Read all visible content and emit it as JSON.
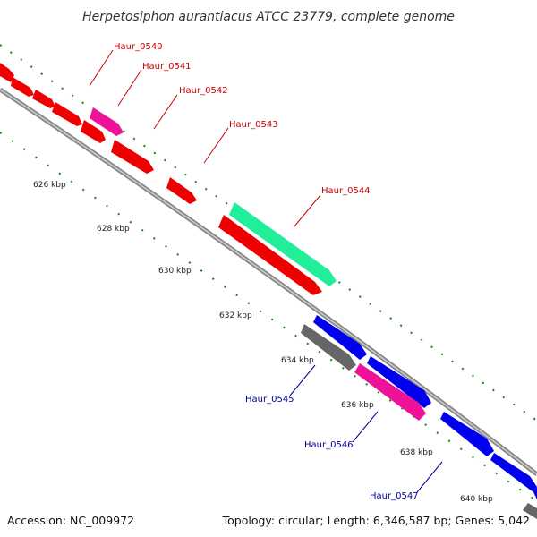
{
  "title": "Herpetosiphon aurantiacus ATCC 23779, complete genome",
  "footer": {
    "accession": "Accession: NC_009972",
    "topology": "Topology: circular; Length: 6,346,587 bp; Genes: 5,042"
  },
  "colors": {
    "forward": "#ee0000",
    "reverse": "#0000ee",
    "pink": "#ee1199",
    "teal": "#22ee99",
    "gray": "#666666",
    "backbone": "#888888",
    "ticks": "#118811",
    "label_fwd": "#cc0000",
    "label_rev": "#000099"
  },
  "scale_labels": [
    "626 kbp",
    "628 kbp",
    "630 kbp",
    "632 kbp",
    "634 kbp",
    "636 kbp",
    "638 kbp",
    "640 kbp"
  ],
  "gene_labels": [
    {
      "text": "Haur_0540",
      "strand": "forward"
    },
    {
      "text": "Haur_0541",
      "strand": "forward"
    },
    {
      "text": "Haur_0542",
      "strand": "forward"
    },
    {
      "text": "Haur_0543",
      "strand": "forward"
    },
    {
      "text": "Haur_0544",
      "strand": "forward"
    },
    {
      "text": "Haur_0545",
      "strand": "reverse"
    },
    {
      "text": "Haur_0546",
      "strand": "reverse"
    },
    {
      "text": "Haur_0547",
      "strand": "reverse"
    }
  ]
}
